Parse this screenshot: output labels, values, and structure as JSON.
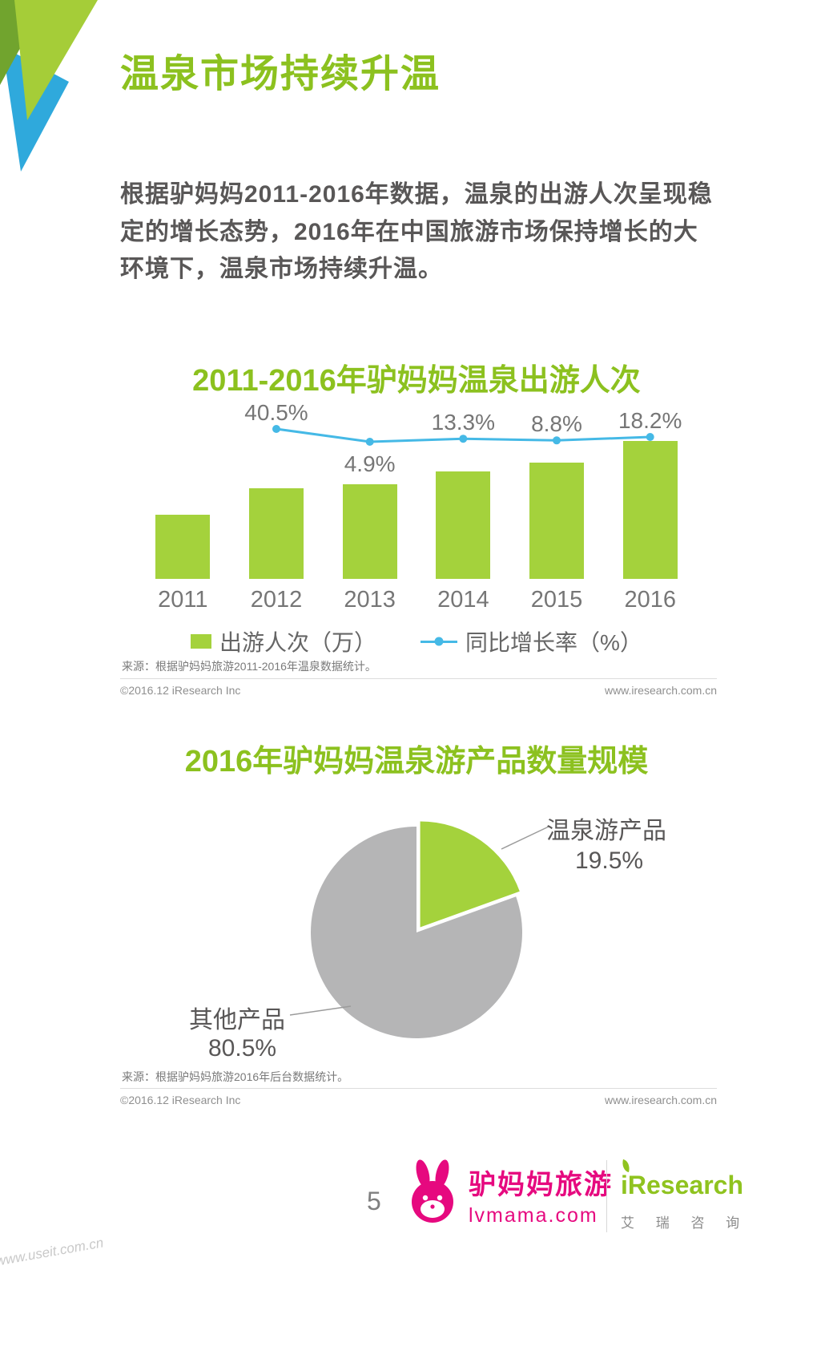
{
  "page": {
    "title": "温泉市场持续升温",
    "intro": "根据驴妈妈2011-2016年数据，温泉的出游人次呈现稳定的增长态势，2016年在中国旅游市场保持增长的大环境下，温泉市场持续升温。",
    "page_number": "5",
    "watermark": "www.useit.com.cn"
  },
  "section_bar": {
    "source": "来源：根据驴妈妈旅游2011-2016年温泉数据统计。",
    "copyright": "©2016.12 iResearch Inc",
    "website": "www.iresearch.com.cn"
  },
  "section_pie": {
    "source": "来源：根据驴妈妈旅游2016年后台数据统计。",
    "copyright": "©2016.12 iResearch Inc",
    "website": "www.iresearch.com.cn"
  },
  "footer": {
    "lvmama_name": "驴妈妈旅游",
    "lvmama_domain": "lvmama.com",
    "iresearch_name": "iResearch",
    "iresearch_cn": "艾 瑞 咨 询"
  },
  "chart_data": [
    {
      "type": "bar",
      "title": "2011-2016年驴妈妈温泉出游人次",
      "categories": [
        "2011",
        "2012",
        "2013",
        "2014",
        "2015",
        "2016"
      ],
      "series": [
        {
          "name": "出游人次（万）",
          "type": "bar",
          "unit": "万（柱体无数值标签，相对高度按同比增长率推算，2011=100）",
          "values": [
            100,
            140.5,
            147.4,
            167.0,
            181.7,
            214.8
          ]
        },
        {
          "name": "同比增长率（%）",
          "type": "line",
          "values": [
            null,
            40.5,
            4.9,
            13.3,
            8.8,
            18.2
          ]
        }
      ],
      "data_labels": [
        "",
        "40.5%",
        "4.9%",
        "13.3%",
        "8.8%",
        "18.2%"
      ],
      "colors": {
        "bar": "#a4d23c",
        "line": "#45b9e6"
      },
      "legend_position": "bottom",
      "grid": false,
      "y_axis_visible": false
    },
    {
      "type": "pie",
      "title": "2016年驴妈妈温泉游产品数量规模",
      "slices": [
        {
          "label": "温泉游产品",
          "value": 19.5,
          "pct_label": "19.5%",
          "color": "#a4d23c",
          "exploded": true
        },
        {
          "label": "其他产品",
          "value": 80.5,
          "pct_label": "80.5%",
          "color": "#b5b5b6",
          "exploded": false
        }
      ],
      "start_angle_deg_from_top": 0,
      "direction": "clockwise",
      "legend_position": "none"
    }
  ]
}
